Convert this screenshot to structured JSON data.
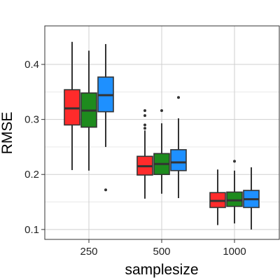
{
  "chart_data": {
    "type": "boxplot",
    "xlabel": "samplesize",
    "ylabel": "RMSE",
    "categories": [
      "250",
      "500",
      "1000"
    ],
    "ylim": [
      0.082,
      0.47
    ],
    "yticks": [
      0.1,
      0.2,
      0.3,
      0.4
    ],
    "ytick_labels": [
      "0.1",
      "0.2",
      "0.3",
      "0.4"
    ],
    "grid": true,
    "legend": "none",
    "series": [
      {
        "color": "#FF2B2B",
        "boxes": [
          {
            "whisker_low": 0.208,
            "q1": 0.29,
            "median": 0.32,
            "q3": 0.354,
            "whisker_high": 0.441,
            "outliers": []
          },
          {
            "whisker_low": 0.156,
            "q1": 0.199,
            "median": 0.215,
            "q3": 0.233,
            "whisker_high": 0.28,
            "outliers": [
              0.284,
              0.29,
              0.307,
              0.316
            ]
          },
          {
            "whisker_low": 0.108,
            "q1": 0.14,
            "median": 0.152,
            "q3": 0.167,
            "whisker_high": 0.209,
            "outliers": []
          }
        ]
      },
      {
        "color": "#1E8B1E",
        "boxes": [
          {
            "whisker_low": 0.207,
            "q1": 0.286,
            "median": 0.316,
            "q3": 0.348,
            "whisker_high": 0.425,
            "outliers": []
          },
          {
            "whisker_low": 0.165,
            "q1": 0.2,
            "median": 0.219,
            "q3": 0.238,
            "whisker_high": 0.293,
            "outliers": [
              0.316
            ]
          },
          {
            "whisker_low": 0.111,
            "q1": 0.142,
            "median": 0.153,
            "q3": 0.168,
            "whisker_high": 0.207,
            "outliers": [
              0.224
            ]
          }
        ]
      },
      {
        "color": "#1E90FF",
        "boxes": [
          {
            "whisker_low": 0.25,
            "q1": 0.314,
            "median": 0.344,
            "q3": 0.377,
            "whisker_high": 0.437,
            "outliers": [
              0.172
            ]
          },
          {
            "whisker_low": 0.157,
            "q1": 0.207,
            "median": 0.222,
            "q3": 0.245,
            "whisker_high": 0.302,
            "outliers": [
              0.34
            ]
          },
          {
            "whisker_low": 0.1,
            "q1": 0.14,
            "median": 0.155,
            "q3": 0.171,
            "whisker_high": 0.213,
            "outliers": []
          }
        ]
      }
    ]
  }
}
